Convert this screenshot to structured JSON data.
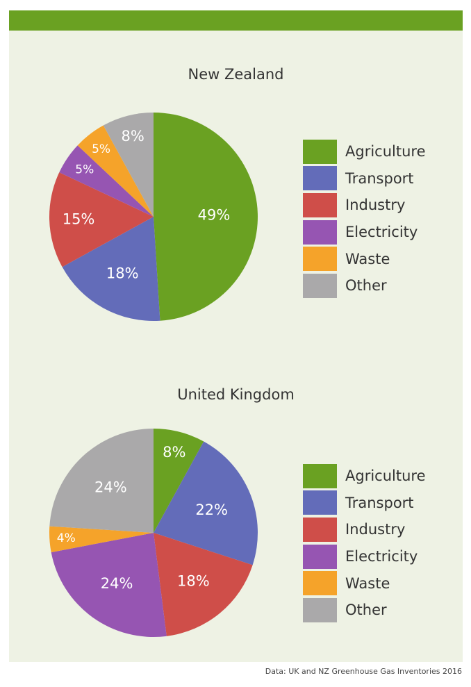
{
  "colors": {
    "banner": "#6aa122",
    "Agriculture": "#6aa122",
    "Transport": "#636cb9",
    "Industry": "#cf4e49",
    "Electricity": "#9655b2",
    "Waste": "#f5a32a",
    "Other": "#aaa9aa"
  },
  "chart_data": [
    {
      "type": "pie",
      "title": "New Zealand",
      "categories": [
        "Agriculture",
        "Transport",
        "Industry",
        "Electricity",
        "Waste",
        "Other"
      ],
      "values": [
        49,
        18,
        15,
        5,
        5,
        8
      ],
      "labels": [
        "49%",
        "18%",
        "15%",
        "5%",
        "5%",
        "8%"
      ],
      "legend": "right"
    },
    {
      "type": "pie",
      "title": "United Kingdom",
      "categories": [
        "Agriculture",
        "Transport",
        "Industry",
        "Electricity",
        "Waste",
        "Other"
      ],
      "values": [
        8,
        22,
        18,
        24,
        4,
        24
      ],
      "labels": [
        "8%",
        "22%",
        "18%",
        "24%",
        "4%",
        "24%"
      ],
      "legend": "right"
    }
  ],
  "source": "Data: UK and NZ Greenhouse Gas Inventories 2016"
}
